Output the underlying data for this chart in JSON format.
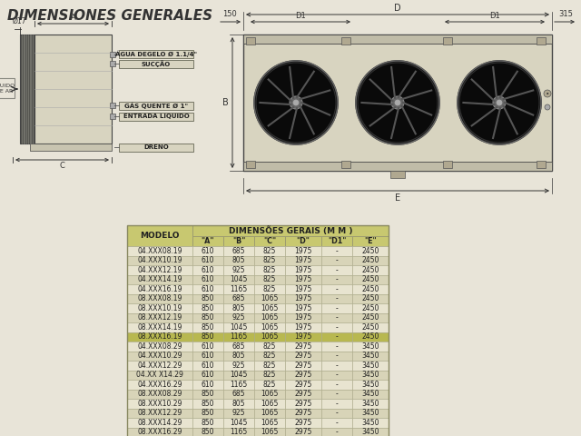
{
  "title": "DIMENSIONES GENERALES",
  "bg_color": "#e8e4d8",
  "table_header_color": "#c8c870",
  "table_alt_row1": "#e8e4d0",
  "table_alt_row2": "#d8d4b8",
  "table_highlight": "#b8b850",
  "table_cols": [
    "MODELO",
    "\"A\"",
    "\"B\"",
    "\"C\"",
    "\"D\"",
    "\"D1\"",
    "\"E\""
  ],
  "table_header_group": "DIMENSÕES GERAIS (M M )",
  "table_data": [
    [
      "04.XXX08.19",
      "610",
      "685",
      "825",
      "1975",
      "-",
      "2450"
    ],
    [
      "04.XXX10.19",
      "610",
      "805",
      "825",
      "1975",
      "-",
      "2450"
    ],
    [
      "04.XXX12.19",
      "610",
      "925",
      "825",
      "1975",
      "-",
      "2450"
    ],
    [
      "04.XXX14.19",
      "610",
      "1045",
      "825",
      "1975",
      "-",
      "2450"
    ],
    [
      "04.XXX16.19",
      "610",
      "1165",
      "825",
      "1975",
      "-",
      "2450"
    ],
    [
      "08.XXX08.19",
      "850",
      "685",
      "1065",
      "1975",
      "-",
      "2450"
    ],
    [
      "08.XXX10.19",
      "850",
      "805",
      "1065",
      "1975",
      "-",
      "2450"
    ],
    [
      "08.XXX12.19",
      "850",
      "925",
      "1065",
      "1975",
      "-",
      "2450"
    ],
    [
      "08.XXX14.19",
      "850",
      "1045",
      "1065",
      "1975",
      "-",
      "2450"
    ],
    [
      "08.XXX16.19",
      "850",
      "1165",
      "1065",
      "1975",
      "-",
      "2450"
    ],
    [
      "04.XXX08.29",
      "610",
      "685",
      "825",
      "2975",
      "-",
      "3450"
    ],
    [
      "04.XXX10.29",
      "610",
      "805",
      "825",
      "2975",
      "-",
      "3450"
    ],
    [
      "04.XXX12.29",
      "610",
      "925",
      "825",
      "2975",
      "-",
      "3450"
    ],
    [
      "04.XX X14.29",
      "610",
      "1045",
      "825",
      "2975",
      "-",
      "3450"
    ],
    [
      "04.XXX16.29",
      "610",
      "1165",
      "825",
      "2975",
      "-",
      "3450"
    ],
    [
      "08.XXX08.29",
      "850",
      "685",
      "1065",
      "2975",
      "-",
      "3450"
    ],
    [
      "08.XXX10.29",
      "850",
      "805",
      "1065",
      "2975",
      "-",
      "3450"
    ],
    [
      "08.XXX12.29",
      "850",
      "925",
      "1065",
      "2975",
      "-",
      "3450"
    ],
    [
      "08.XXX14.29",
      "850",
      "1045",
      "1065",
      "2975",
      "-",
      "3450"
    ],
    [
      "08.XXX16.29",
      "850",
      "1165",
      "1065",
      "2975",
      "-",
      "3450"
    ]
  ],
  "highlight_rows": [
    9
  ],
  "left_diagram_labels": [
    "ÁGUA DEGELO Ø 1.1/4\"",
    "SUCÇÃO",
    "GÁS QUENTE Ø 1\"",
    "ENTRADA LIQUIDO",
    "DRENO"
  ],
  "left_label": "FLUIDO\nDE AR"
}
